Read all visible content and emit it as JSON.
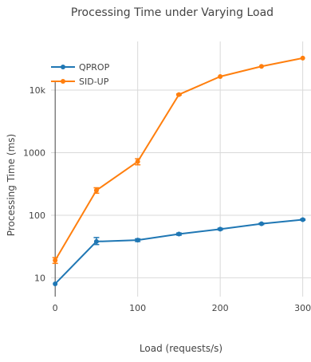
{
  "chart_data": {
    "type": "line",
    "title": "Processing Time under Varying Load",
    "xlabel": "Load (requests/s)",
    "ylabel": "Processing Time (ms)",
    "x_scale": "linear",
    "y_scale": "log",
    "xlim": [
      -5,
      310
    ],
    "ylim": [
      5,
      60000
    ],
    "x_ticks": [
      0,
      100,
      200,
      300
    ],
    "x_tick_labels": [
      "0",
      "100",
      "200",
      "300"
    ],
    "y_ticks": [
      10,
      100,
      1000,
      10000
    ],
    "y_tick_labels": [
      "10",
      "100",
      "1000",
      "10k"
    ],
    "grid": true,
    "legend_position": "top-left",
    "x": [
      0,
      50,
      100,
      150,
      200,
      250,
      300
    ],
    "series": [
      {
        "name": "QPROP",
        "color": "#1f77b4",
        "values": [
          8,
          38,
          40,
          50,
          60,
          73,
          85
        ],
        "error_low": [
          8,
          34,
          38,
          48,
          58,
          71,
          83
        ],
        "error_high": [
          8,
          44,
          42,
          52,
          62,
          75,
          87
        ]
      },
      {
        "name": "SID-UP",
        "color": "#ff7f0e",
        "values": [
          19,
          250,
          720,
          8500,
          16500,
          24000,
          32500
        ],
        "error_low": [
          17,
          225,
          640,
          8300,
          16200,
          23600,
          32000
        ],
        "error_high": [
          21,
          275,
          800,
          8700,
          16800,
          24400,
          33000
        ]
      }
    ]
  }
}
